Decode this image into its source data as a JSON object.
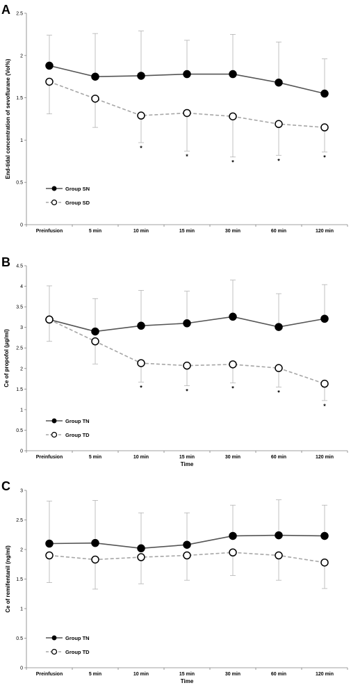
{
  "chart_data": [
    {
      "type": "line",
      "panel": "A",
      "categories": [
        "Preinfusion",
        "5 min",
        "10 min",
        "15 min",
        "30 min",
        "60 min",
        "120 min"
      ],
      "ylabel": "End-tidal concentration of sevoflurane (Vol%)",
      "xlabel": "",
      "ylim": [
        0,
        2.5
      ],
      "yticks": [
        "0",
        "0.5",
        "1",
        "1.5",
        "2",
        "2.5"
      ],
      "series": [
        {
          "name": "Group SN",
          "values": [
            1.88,
            1.75,
            1.76,
            1.78,
            1.78,
            1.68,
            1.55
          ],
          "err_up": [
            2.24,
            2.26,
            2.29,
            2.18,
            2.25,
            2.16,
            1.96
          ],
          "err_down": [
            1.88,
            1.75,
            1.76,
            1.78,
            1.78,
            1.68,
            1.55
          ],
          "color": "#555555",
          "dashed": false,
          "marker": "filled"
        },
        {
          "name": "Group SD",
          "values": [
            1.69,
            1.49,
            1.29,
            1.32,
            1.28,
            1.19,
            1.15
          ],
          "err_up": [
            1.69,
            1.49,
            1.29,
            1.32,
            1.28,
            1.19,
            1.15
          ],
          "err_down": [
            1.31,
            1.15,
            0.97,
            0.87,
            0.8,
            0.82,
            0.86
          ],
          "color": "#a6a6a6",
          "dashed": true,
          "marker": "open"
        }
      ],
      "significance": [
        "",
        "",
        "*",
        "*",
        "*",
        "*",
        "*"
      ],
      "legend": "bottom-left"
    },
    {
      "type": "line",
      "panel": "B",
      "categories": [
        "Preinfusion",
        "5 min",
        "10 min",
        "15 min",
        "30 min",
        "60 min",
        "120 min"
      ],
      "ylabel": "Ce of propofol (μg/ml)",
      "xlabel": "Time",
      "ylim": [
        0,
        4.5
      ],
      "yticks": [
        "0",
        "0.5",
        "1",
        "1.5",
        "2",
        "2.5",
        "3",
        "3.5",
        "4",
        "4.5"
      ],
      "series": [
        {
          "name": "Group TN",
          "values": [
            3.19,
            2.9,
            3.04,
            3.1,
            3.26,
            3.01,
            3.21
          ],
          "err_up": [
            4.01,
            3.7,
            3.9,
            3.88,
            4.15,
            3.82,
            4.04
          ],
          "err_down": [
            3.19,
            2.9,
            3.04,
            3.1,
            3.26,
            3.01,
            3.21
          ],
          "color": "#555555",
          "dashed": false,
          "marker": "filled"
        },
        {
          "name": "Group TD",
          "values": [
            3.19,
            2.66,
            2.13,
            2.07,
            2.1,
            2.01,
            1.63
          ],
          "err_up": [
            3.19,
            2.66,
            2.13,
            2.07,
            2.1,
            2.01,
            1.63
          ],
          "err_down": [
            2.66,
            2.11,
            1.67,
            1.58,
            1.65,
            1.55,
            1.22
          ],
          "color": "#a6a6a6",
          "dashed": true,
          "marker": "open"
        }
      ],
      "significance": [
        "",
        "",
        "*",
        "*",
        "*",
        "*",
        "*"
      ],
      "legend": "bottom-left"
    },
    {
      "type": "line",
      "panel": "C",
      "categories": [
        "Preinfusion",
        "5 min",
        "10 min",
        "15 min",
        "30 min",
        "60 min",
        "120 min"
      ],
      "ylabel": "Ce of remifentanil (ng/ml)",
      "xlabel": "Time",
      "ylim": [
        0,
        3
      ],
      "yticks": [
        "0",
        "0.5",
        "1",
        "1.5",
        "2",
        "2.5",
        "3"
      ],
      "series": [
        {
          "name": "Group TN",
          "values": [
            2.1,
            2.11,
            2.02,
            2.08,
            2.23,
            2.24,
            2.23
          ],
          "err_up": [
            2.82,
            2.83,
            2.62,
            2.62,
            2.75,
            2.84,
            2.75
          ],
          "err_down": [
            2.1,
            2.11,
            2.02,
            2.08,
            2.23,
            2.24,
            2.23
          ],
          "color": "#555555",
          "dashed": false,
          "marker": "filled"
        },
        {
          "name": "Group TD",
          "values": [
            1.9,
            1.83,
            1.87,
            1.9,
            1.95,
            1.9,
            1.78
          ],
          "err_up": [
            1.9,
            1.83,
            1.87,
            1.9,
            1.95,
            1.9,
            1.78
          ],
          "err_down": [
            1.44,
            1.33,
            1.42,
            1.48,
            1.56,
            1.48,
            1.34
          ],
          "color": "#a6a6a6",
          "dashed": true,
          "marker": "open"
        }
      ],
      "significance": [
        "",
        "",
        "",
        "",
        "",
        "",
        ""
      ],
      "legend": "bottom-left"
    }
  ]
}
